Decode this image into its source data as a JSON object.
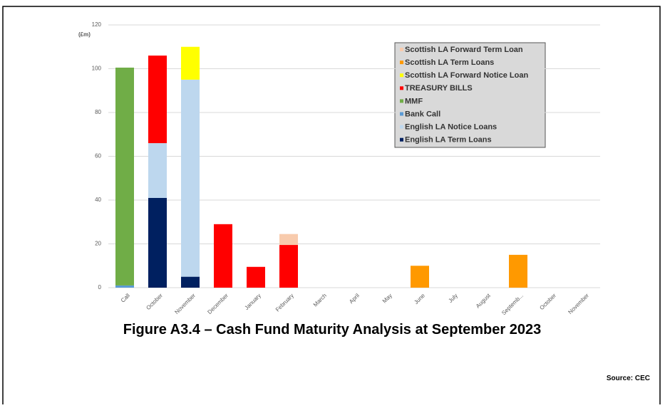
{
  "chart_data": {
    "type": "stacked-bar",
    "title": "Figure A3.4 – Cash Fund Maturity Analysis at September 2023",
    "source": "Source: CEC",
    "y_label": "(£m)",
    "categories": [
      "Call",
      "October",
      "November",
      "December",
      "January",
      "February",
      "March",
      "April",
      "May",
      "June",
      "July",
      "August",
      "Septemb...",
      "October",
      "November"
    ],
    "ylim": [
      0,
      120
    ],
    "yticks": [
      0,
      20,
      40,
      60,
      80,
      100,
      120
    ],
    "grid": true,
    "series": [
      {
        "name": "English LA Term Loans",
        "color": "#002060",
        "values": [
          null,
          41,
          5,
          null,
          null,
          null,
          null,
          null,
          null,
          null,
          null,
          null,
          null,
          null,
          null
        ]
      },
      {
        "name": "English LA Notice Loans",
        "color": "#bdd7ee",
        "values": [
          null,
          25,
          90,
          null,
          null,
          null,
          null,
          null,
          null,
          null,
          null,
          null,
          null,
          null,
          null
        ]
      },
      {
        "name": "Bank Call",
        "color": "#5b9bd5",
        "values": [
          1,
          null,
          null,
          null,
          null,
          null,
          null,
          null,
          null,
          null,
          null,
          null,
          null,
          null,
          null
        ]
      },
      {
        "name": "MMF",
        "color": "#70ad47",
        "values": [
          99.5,
          null,
          null,
          null,
          null,
          null,
          null,
          null,
          null,
          null,
          null,
          null,
          null,
          null,
          null
        ]
      },
      {
        "name": "TREASURY BILLS",
        "color": "#ff0000",
        "values": [
          null,
          40,
          null,
          29,
          9.5,
          19.5,
          null,
          null,
          null,
          null,
          null,
          null,
          null,
          null,
          null
        ]
      },
      {
        "name": "Scottish LA Forward Notice Loan",
        "color": "#ffff00",
        "values": [
          null,
          null,
          15,
          null,
          null,
          null,
          null,
          null,
          null,
          null,
          null,
          null,
          null,
          null,
          null
        ]
      },
      {
        "name": "Scottish LA Term Loans",
        "color": "#ff9900",
        "values": [
          null,
          null,
          null,
          null,
          null,
          null,
          null,
          null,
          null,
          10,
          null,
          null,
          15,
          null,
          null
        ]
      },
      {
        "name": "Scottish LA Forward Term Loan",
        "color": "#f8cbad",
        "values": [
          null,
          null,
          null,
          null,
          null,
          5,
          null,
          null,
          null,
          null,
          null,
          null,
          null,
          null,
          null
        ]
      }
    ]
  }
}
